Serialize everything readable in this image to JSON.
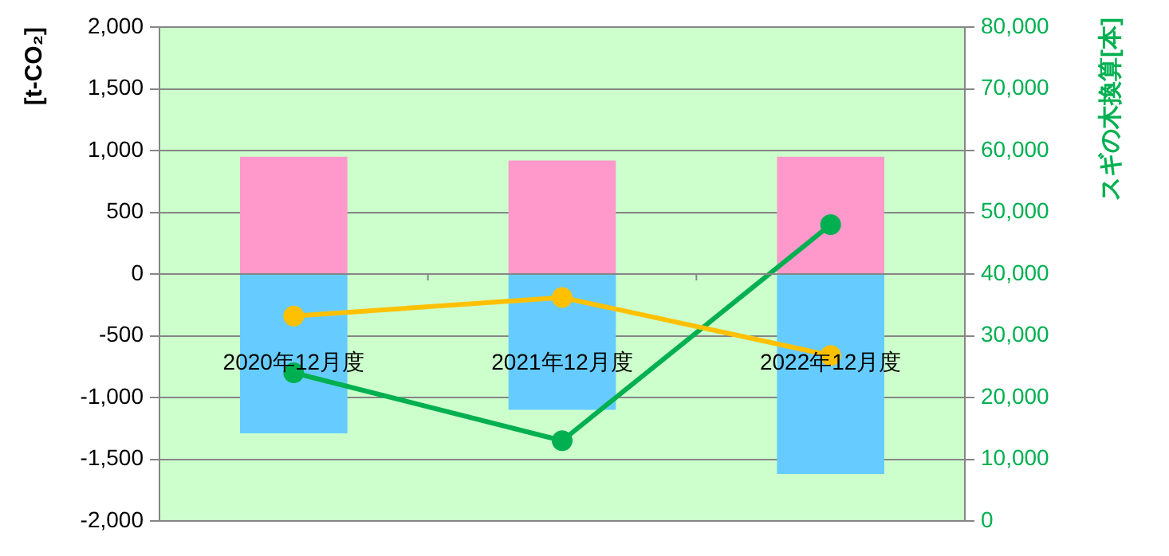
{
  "chart_data": {
    "type": "bar",
    "ylabel": "[t-CO₂]",
    "y2label": "スギの木換算[本]",
    "categories": [
      "2020年12月度",
      "2021年12月度",
      "2022年12月度"
    ],
    "stacked": true,
    "grid": "y",
    "legend": false,
    "marker": "circle",
    "ylim": [
      -2000,
      2000
    ],
    "yticks": [
      {
        "value": -2000,
        "label": "-2,000"
      },
      {
        "value": -1500,
        "label": "-1,500"
      },
      {
        "value": -1000,
        "label": "-1,000"
      },
      -500,
      0,
      500,
      {
        "value": 1000,
        "label": "1,000"
      },
      {
        "value": 1500,
        "label": "1,500"
      },
      {
        "value": 2000,
        "label": "2,000"
      }
    ],
    "y2lim": [
      0,
      80000
    ],
    "y2ticks": [
      0,
      {
        "value": 10000,
        "label": "10,000"
      },
      {
        "value": 20000,
        "label": "20,000"
      },
      {
        "value": 30000,
        "label": "30,000"
      },
      {
        "value": 40000,
        "label": "40,000"
      },
      {
        "value": 50000,
        "label": "50,000"
      },
      {
        "value": 60000,
        "label": "60,000"
      },
      {
        "value": 70000,
        "label": "70,000"
      },
      {
        "value": 80000,
        "label": "80,000"
      }
    ],
    "series": [
      {
        "color": "#ff99cc",
        "values": [
          950,
          920,
          950
        ]
      },
      {
        "color": "#66ccff",
        "values": [
          -1290,
          -1100,
          -1620
        ]
      },
      {
        "type": "line",
        "color": "#ffc000",
        "values": [
          -340,
          -190,
          -660
        ]
      },
      {
        "type": "line",
        "color": "#00b050",
        "axis": "y2",
        "values": [
          24000,
          13000,
          48000
        ]
      }
    ]
  }
}
